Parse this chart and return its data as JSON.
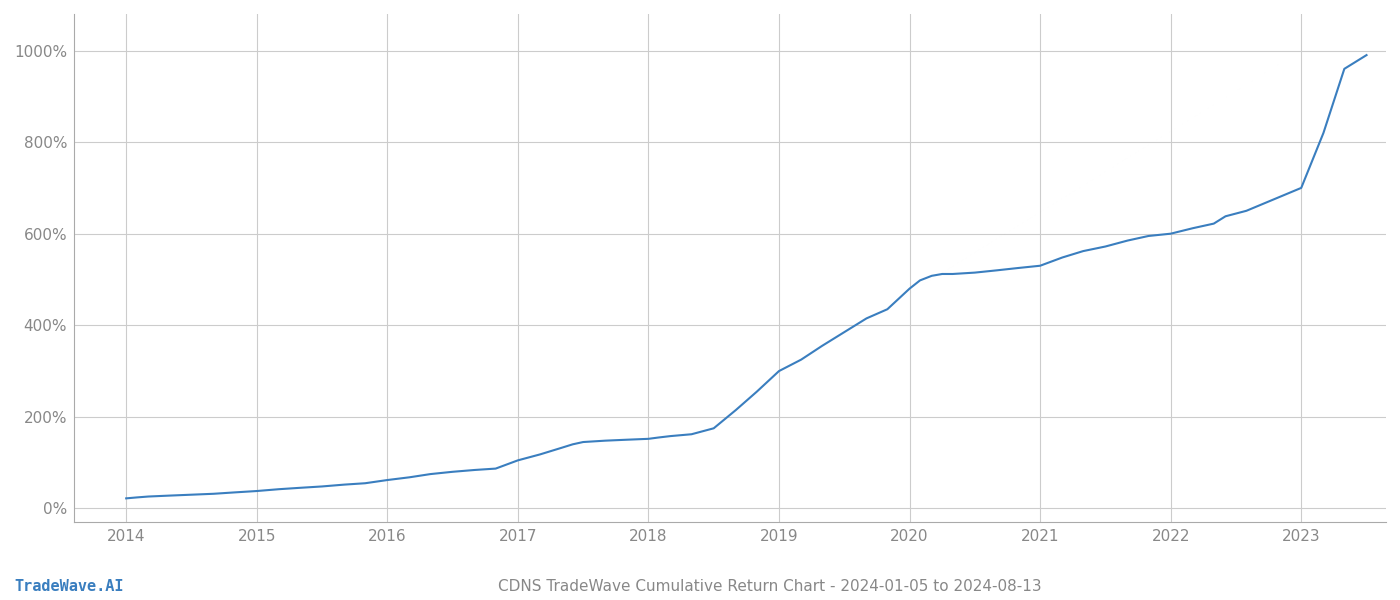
{
  "title": "CDNS TradeWave Cumulative Return Chart - 2024-01-05 to 2024-08-13",
  "watermark": "TradeWave.AI",
  "line_color": "#3a7ebf",
  "background_color": "#ffffff",
  "grid_color": "#cccccc",
  "x_years": [
    2014,
    2015,
    2016,
    2017,
    2018,
    2019,
    2020,
    2021,
    2022,
    2023
  ],
  "data_x": [
    2014.0,
    2014.08,
    2014.17,
    2014.33,
    2014.5,
    2014.67,
    2014.83,
    2015.0,
    2015.17,
    2015.33,
    2015.5,
    2015.67,
    2015.83,
    2016.0,
    2016.17,
    2016.33,
    2016.5,
    2016.67,
    2016.83,
    2017.0,
    2017.17,
    2017.33,
    2017.42,
    2017.5,
    2017.67,
    2017.83,
    2018.0,
    2018.08,
    2018.17,
    2018.33,
    2018.5,
    2018.67,
    2018.83,
    2019.0,
    2019.17,
    2019.33,
    2019.5,
    2019.67,
    2019.83,
    2020.0,
    2020.08,
    2020.17,
    2020.25,
    2020.33,
    2020.5,
    2020.67,
    2020.83,
    2021.0,
    2021.17,
    2021.33,
    2021.5,
    2021.67,
    2021.83,
    2022.0,
    2022.17,
    2022.33,
    2022.42,
    2022.58,
    2023.0,
    2023.17,
    2023.33,
    2023.5
  ],
  "data_y": [
    22,
    24,
    26,
    28,
    30,
    32,
    35,
    38,
    42,
    45,
    48,
    52,
    55,
    62,
    68,
    75,
    80,
    84,
    87,
    105,
    118,
    132,
    140,
    145,
    148,
    150,
    152,
    155,
    158,
    162,
    175,
    215,
    255,
    300,
    325,
    355,
    385,
    415,
    435,
    480,
    498,
    508,
    512,
    512,
    515,
    520,
    525,
    530,
    548,
    562,
    572,
    585,
    595,
    600,
    612,
    622,
    638,
    650,
    700,
    820,
    960,
    990
  ],
  "ylim": [
    -30,
    1080
  ],
  "yticks": [
    0,
    200,
    400,
    600,
    800,
    1000
  ],
  "ytick_labels": [
    "0%",
    "200%",
    "400%",
    "600%",
    "800%",
    "1000%"
  ],
  "xlim": [
    2013.6,
    2023.65
  ],
  "title_fontsize": 11,
  "watermark_fontsize": 11,
  "axis_tick_fontsize": 11,
  "line_width": 1.5
}
